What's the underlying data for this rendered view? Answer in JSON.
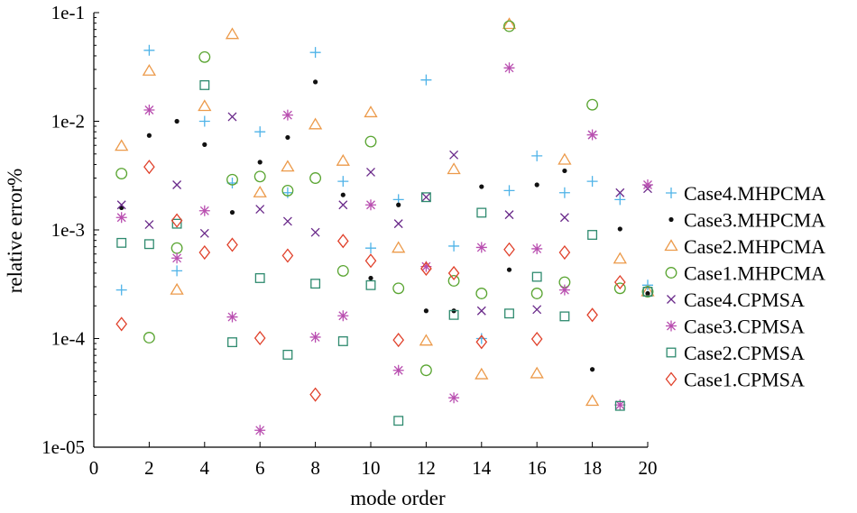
{
  "chart_data": {
    "type": "scatter",
    "xlabel": "mode order",
    "ylabel": "relative error%",
    "xlim": [
      0,
      20
    ],
    "ylim": [
      1e-05,
      0.1
    ],
    "yscale": "log",
    "xticks": [
      0,
      2,
      4,
      6,
      8,
      10,
      12,
      14,
      16,
      18,
      20
    ],
    "xtick_labels": [
      "0",
      "2",
      "4",
      "6",
      "8",
      "10",
      "12",
      "14",
      "16",
      "18",
      "20"
    ],
    "yticks": [
      1e-05,
      0.0001,
      0.001,
      0.01,
      0.1
    ],
    "ytick_labels": [
      "1e-05",
      "1e-4",
      "1e-3",
      "1e-2",
      "1e-1"
    ],
    "grid": false,
    "legend_position": "right",
    "series": [
      {
        "name": "Case4.MHPCMA",
        "marker": "plus",
        "color": "#4fb3e8",
        "x": [
          1,
          2,
          3,
          4,
          5,
          6,
          7,
          8,
          9,
          10,
          11,
          12,
          13,
          14,
          15,
          16,
          17,
          18,
          19,
          20
        ],
        "y": [
          0.00028,
          0.045,
          0.00042,
          0.01,
          0.0027,
          0.008,
          0.0022,
          0.043,
          0.0028,
          0.00068,
          0.0019,
          0.024,
          0.00071,
          0.0001,
          0.0023,
          0.0048,
          0.0022,
          0.0028,
          0.0019,
          0.00031
        ]
      },
      {
        "name": "Case3.MHPCMA",
        "marker": "dot",
        "color": "#111111",
        "x": [
          1,
          2,
          3,
          4,
          5,
          6,
          7,
          8,
          9,
          10,
          11,
          12,
          13,
          14,
          15,
          16,
          17,
          18,
          19,
          20
        ],
        "y": [
          0.0016,
          0.0074,
          0.01,
          0.0061,
          0.00145,
          0.0042,
          0.0071,
          0.023,
          0.0021,
          0.00036,
          0.0017,
          0.00018,
          0.00018,
          0.0025,
          0.00043,
          0.0026,
          0.0035,
          5.2e-05,
          0.00102,
          0.00026
        ]
      },
      {
        "name": "Case2.MHPCMA",
        "marker": "triangle",
        "color": "#ec9a4a",
        "x": [
          1,
          2,
          3,
          4,
          5,
          6,
          7,
          8,
          9,
          10,
          11,
          12,
          13,
          14,
          15,
          16,
          17,
          18,
          19,
          20
        ],
        "y": [
          0.0059,
          0.029,
          0.00028,
          0.0137,
          0.063,
          0.0022,
          0.0038,
          0.0093,
          0.0043,
          0.012,
          0.00068,
          9.5e-05,
          0.0036,
          4.65e-05,
          0.078,
          4.75e-05,
          0.0044,
          2.65e-05,
          0.00054,
          0.00027
        ]
      },
      {
        "name": "Case1.MHPCMA",
        "marker": "circle",
        "color": "#5aa532",
        "x": [
          1,
          2,
          3,
          4,
          5,
          6,
          7,
          8,
          9,
          10,
          11,
          12,
          13,
          14,
          15,
          16,
          17,
          18,
          19,
          20
        ],
        "y": [
          0.0033,
          0.000102,
          0.00068,
          0.039,
          0.0029,
          0.0031,
          0.0023,
          0.003,
          0.00042,
          0.0065,
          0.00029,
          5.1e-05,
          0.00034,
          0.00026,
          0.075,
          0.00026,
          0.00033,
          0.0142,
          0.00029,
          0.00027
        ]
      },
      {
        "name": "Case4.CPMSA",
        "marker": "cross",
        "color": "#6a2a8a",
        "x": [
          1,
          2,
          3,
          4,
          5,
          6,
          7,
          8,
          9,
          10,
          11,
          12,
          13,
          14,
          15,
          16,
          17,
          18,
          19,
          20
        ],
        "y": [
          0.0017,
          0.00112,
          0.0026,
          0.00093,
          0.011,
          0.00155,
          0.0012,
          0.00095,
          0.0017,
          0.0034,
          0.00114,
          0.002,
          0.0049,
          0.00018,
          0.00138,
          0.000185,
          0.0013,
          0.0075,
          0.0022,
          0.0024
        ]
      },
      {
        "name": "Case3.CPMSA",
        "marker": "star",
        "color": "#b94fb0",
        "x": [
          1,
          2,
          3,
          4,
          5,
          6,
          7,
          8,
          9,
          10,
          11,
          12,
          13,
          14,
          15,
          16,
          17,
          18,
          19,
          20
        ],
        "y": [
          0.0013,
          0.0127,
          0.00055,
          0.0015,
          0.000158,
          1.43e-05,
          0.0114,
          0.000103,
          0.000162,
          0.0017,
          5.1e-05,
          0.00046,
          2.85e-05,
          0.00069,
          0.031,
          0.00067,
          0.00028,
          0.0075,
          2.45e-05,
          0.0026
        ]
      },
      {
        "name": "Case2.CPMSA",
        "marker": "square",
        "color": "#2e8a6e",
        "x": [
          1,
          2,
          3,
          4,
          5,
          6,
          7,
          8,
          9,
          10,
          11,
          12,
          13,
          14,
          15,
          16,
          17,
          18,
          19,
          20
        ],
        "y": [
          0.00076,
          0.00074,
          0.00114,
          0.0215,
          9.25e-05,
          0.00036,
          7.1e-05,
          0.00032,
          9.45e-05,
          0.00031,
          1.75e-05,
          0.002,
          0.000165,
          0.00144,
          0.00017,
          0.00037,
          0.00016,
          0.0009,
          2.4e-05,
          0.00027
        ]
      },
      {
        "name": "Case1.CPMSA",
        "marker": "diamond",
        "color": "#e0402a",
        "x": [
          1,
          2,
          3,
          4,
          5,
          6,
          7,
          8,
          9,
          10,
          11,
          12,
          13,
          14,
          15,
          16,
          17,
          18,
          19
        ],
        "y": [
          0.000136,
          0.0038,
          0.00122,
          0.00062,
          0.00073,
          0.000101,
          0.00058,
          3.05e-05,
          0.00079,
          0.00052,
          9.7e-05,
          0.00044,
          0.0004,
          9.3e-05,
          0.00066,
          9.9e-05,
          0.00062,
          0.000165,
          0.00033
        ]
      }
    ]
  }
}
